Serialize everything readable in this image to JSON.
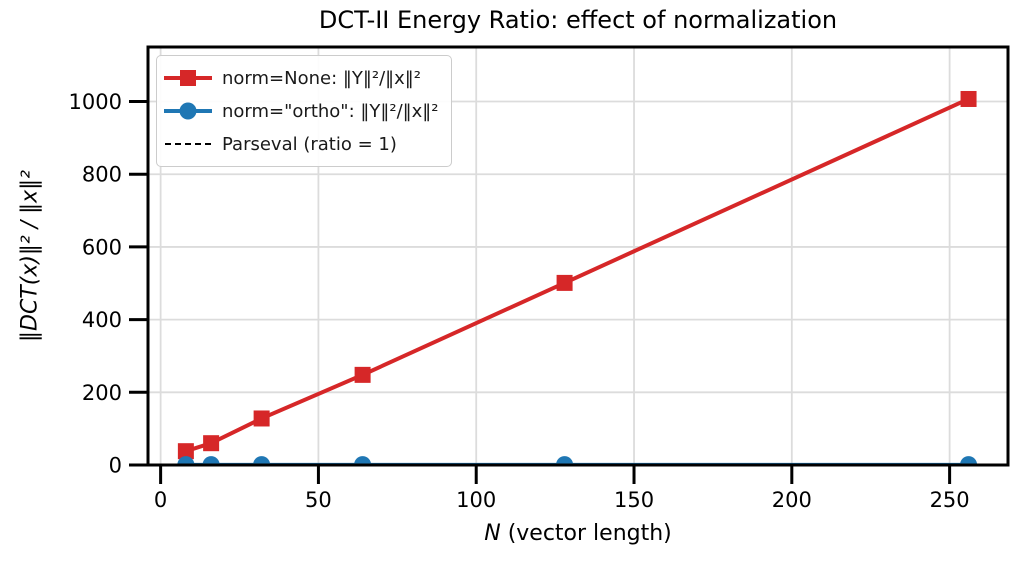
{
  "window": {
    "kind": "matplotlib-figure"
  },
  "chart_data": {
    "type": "line",
    "title": "DCT-II Energy Ratio: effect of normalization",
    "xlabel_math": "N",
    "xlabel_rest": " (vector length)",
    "ylabel": "‖DCT(x)‖² / ‖x‖²",
    "x": [
      8,
      16,
      32,
      64,
      128,
      256
    ],
    "series": [
      {
        "name": "norm=None: ‖Y‖²/‖x‖²",
        "kind": "line",
        "color": "#d62728",
        "marker": "square",
        "line_width": 4,
        "values": [
          38,
          60,
          128,
          248,
          501,
          1007
        ]
      },
      {
        "name": "norm=\"ortho\": ‖Y‖²/‖x‖²",
        "kind": "line",
        "color": "#1f77b4",
        "marker": "circle",
        "line_width": 3.5,
        "values": [
          1,
          1,
          1,
          1,
          1,
          1
        ]
      },
      {
        "name": "Parseval (ratio = 1)",
        "kind": "hline",
        "color": "#000000",
        "style": "dashed",
        "line_width": 2,
        "value": 1
      }
    ],
    "xlim": [
      -4,
      268.5
    ],
    "ylim": [
      0,
      1150
    ],
    "xticks": [
      0,
      50,
      100,
      150,
      200,
      250
    ],
    "yticks": [
      0,
      200,
      400,
      600,
      800,
      1000
    ],
    "grid": true,
    "grid_color": "#dcdcdc",
    "axis_color": "#000000",
    "legend_position": "upper left"
  }
}
